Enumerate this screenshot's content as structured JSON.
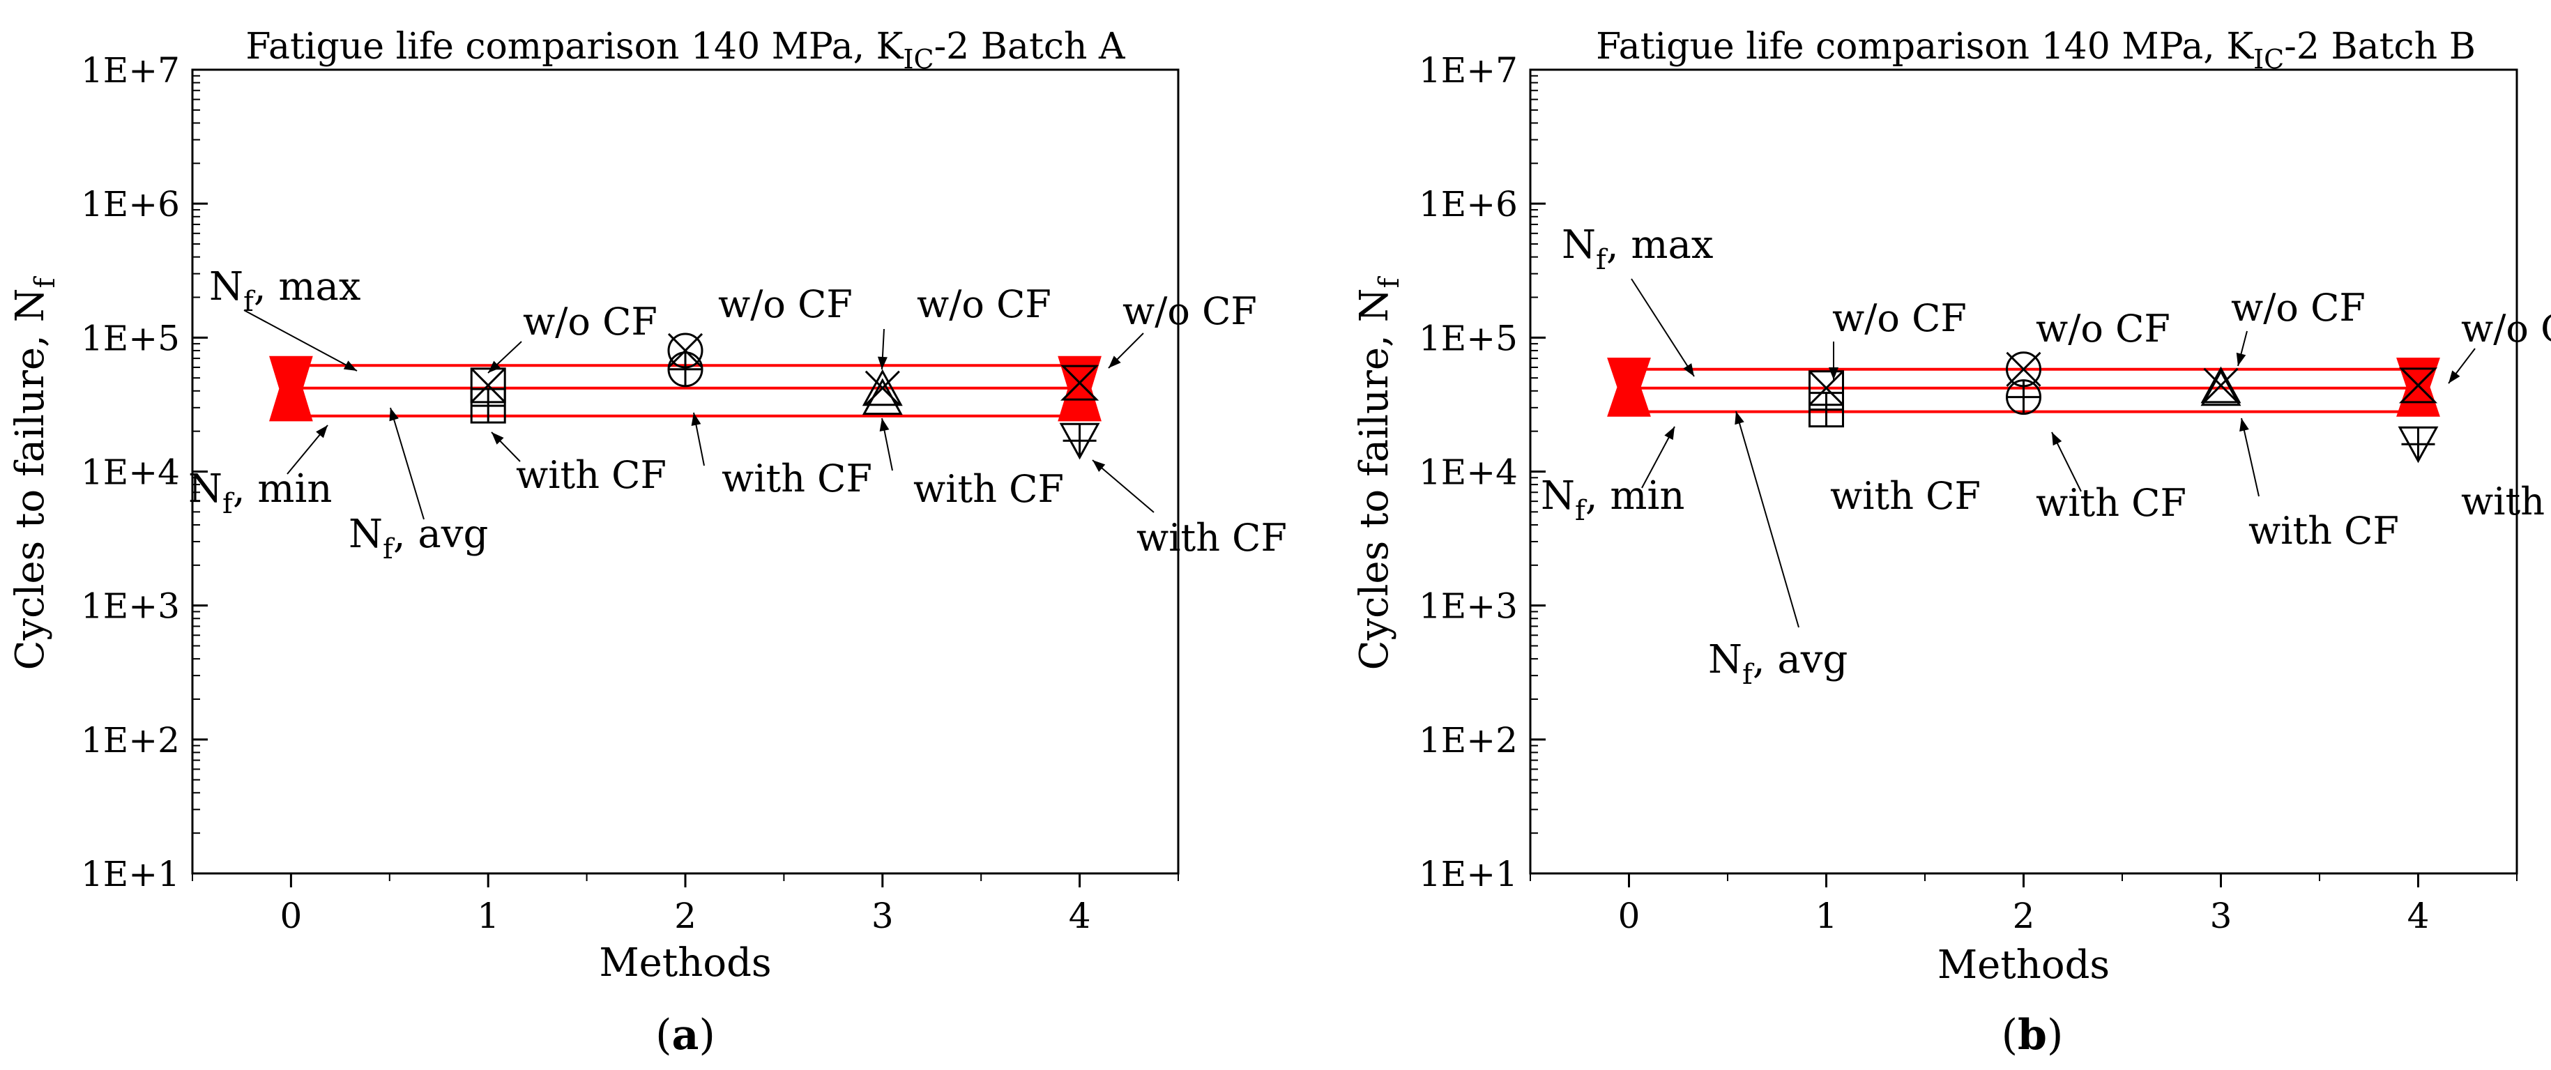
{
  "chart_data": [
    {
      "panel": "a",
      "panel_label": "a",
      "type": "scatter",
      "title": "Fatigue life comparison 140 MPa, K",
      "title_sub": "IC",
      "title_tail": "-2 Batch A",
      "xlabel": "Methods",
      "ylabel": "Cycles to failure, N",
      "ylabel_sub": "f",
      "xlim": [
        -0.5,
        4.5
      ],
      "ylim_log10": [
        1,
        7
      ],
      "x_ticks": [
        "0",
        "1",
        "2",
        "3",
        "4"
      ],
      "y_ticks": [
        "1E+1",
        "1E+2",
        "1E+3",
        "1E+4",
        "1E+5",
        "1E+6",
        "1E+7"
      ],
      "reference_lines": {
        "nf_max": 62000,
        "nf_avg": 42000,
        "nf_min": 26000
      },
      "series": [
        {
          "name": "w/o CF",
          "points": [
            {
              "x": 1,
              "y": 44000,
              "marker": "box-x"
            },
            {
              "x": 2,
              "y": 80000,
              "marker": "circle-x"
            },
            {
              "x": 3,
              "y": 42000,
              "marker": "triangle-x"
            },
            {
              "x": 4,
              "y": 46000,
              "marker": "hourglass-x"
            }
          ]
        },
        {
          "name": "with CF",
          "points": [
            {
              "x": 1,
              "y": 31000,
              "marker": "box-plus"
            },
            {
              "x": 2,
              "y": 58000,
              "marker": "circle-plus"
            },
            {
              "x": 3,
              "y": 36000,
              "marker": "triangle-up"
            },
            {
              "x": 4,
              "y": 17000,
              "marker": "triangle-down-plus"
            }
          ]
        }
      ],
      "bars": [
        {
          "x": 0,
          "low": 24000,
          "high": 72000
        },
        {
          "x": 4,
          "low": 24000,
          "high": 72000
        }
      ],
      "annotations": [
        {
          "id": "nfmax",
          "text": "N",
          "sub": "f",
          "tail": ", max"
        },
        {
          "id": "nfmin",
          "text": "N",
          "sub": "f",
          "tail": ", min"
        },
        {
          "id": "nfavg",
          "text": "N",
          "sub": "f",
          "tail": ", avg"
        },
        {
          "id": "wo1",
          "text": "w/o CF"
        },
        {
          "id": "wo2",
          "text": "w/o CF"
        },
        {
          "id": "wo3",
          "text": "w/o CF"
        },
        {
          "id": "wo4",
          "text": "w/o CF"
        },
        {
          "id": "w1",
          "text": "with CF"
        },
        {
          "id": "w2",
          "text": "with CF"
        },
        {
          "id": "w3",
          "text": "with CF"
        },
        {
          "id": "w4",
          "text": "with CF"
        }
      ]
    },
    {
      "panel": "b",
      "panel_label": "b",
      "type": "scatter",
      "title": "Fatigue life comparison 140 MPa, K",
      "title_sub": "IC",
      "title_tail": "-2 Batch B",
      "xlabel": "Methods",
      "ylabel": "Cycles to failure, N",
      "ylabel_sub": "f",
      "xlim": [
        -0.5,
        4.5
      ],
      "ylim_log10": [
        1,
        7
      ],
      "x_ticks": [
        "0",
        "1",
        "2",
        "3",
        "4"
      ],
      "y_ticks": [
        "1E+1",
        "1E+2",
        "1E+3",
        "1E+4",
        "1E+5",
        "1E+6",
        "1E+7"
      ],
      "reference_lines": {
        "nf_max": 58000,
        "nf_avg": 42000,
        "nf_min": 28000
      },
      "series": [
        {
          "name": "w/o CF",
          "points": [
            {
              "x": 1,
              "y": 42000,
              "marker": "box-x"
            },
            {
              "x": 2,
              "y": 58000,
              "marker": "circle-x"
            },
            {
              "x": 3,
              "y": 44000,
              "marker": "triangle-x"
            },
            {
              "x": 4,
              "y": 44000,
              "marker": "hourglass-x"
            }
          ]
        },
        {
          "name": "with CF",
          "points": [
            {
              "x": 1,
              "y": 29000,
              "marker": "box-plus"
            },
            {
              "x": 2,
              "y": 36000,
              "marker": "circle-plus"
            },
            {
              "x": 3,
              "y": 42000,
              "marker": "triangle-up"
            },
            {
              "x": 4,
              "y": 16000,
              "marker": "triangle-down-plus"
            }
          ]
        }
      ],
      "bars": [
        {
          "x": 0,
          "low": 26000,
          "high": 70000
        },
        {
          "x": 4,
          "low": 26000,
          "high": 70000
        }
      ],
      "annotations": [
        {
          "id": "nfmax",
          "text": "N",
          "sub": "f",
          "tail": ", max"
        },
        {
          "id": "nfmin",
          "text": "N",
          "sub": "f",
          "tail": ", min"
        },
        {
          "id": "nfavg",
          "text": "N",
          "sub": "f",
          "tail": ", avg"
        },
        {
          "id": "wo1",
          "text": "w/o CF"
        },
        {
          "id": "wo2",
          "text": "w/o CF"
        },
        {
          "id": "wo3",
          "text": "w/o CF"
        },
        {
          "id": "wo4",
          "text": "w/o CF"
        },
        {
          "id": "w1",
          "text": "with CF"
        },
        {
          "id": "w2",
          "text": "with CF"
        },
        {
          "id": "w3",
          "text": "with CF"
        },
        {
          "id": "w4",
          "text": "with CF"
        }
      ]
    }
  ],
  "colors": {
    "line": "#ff0000",
    "bar": "#ff0000",
    "axis": "#000000",
    "marker": "#000000"
  }
}
